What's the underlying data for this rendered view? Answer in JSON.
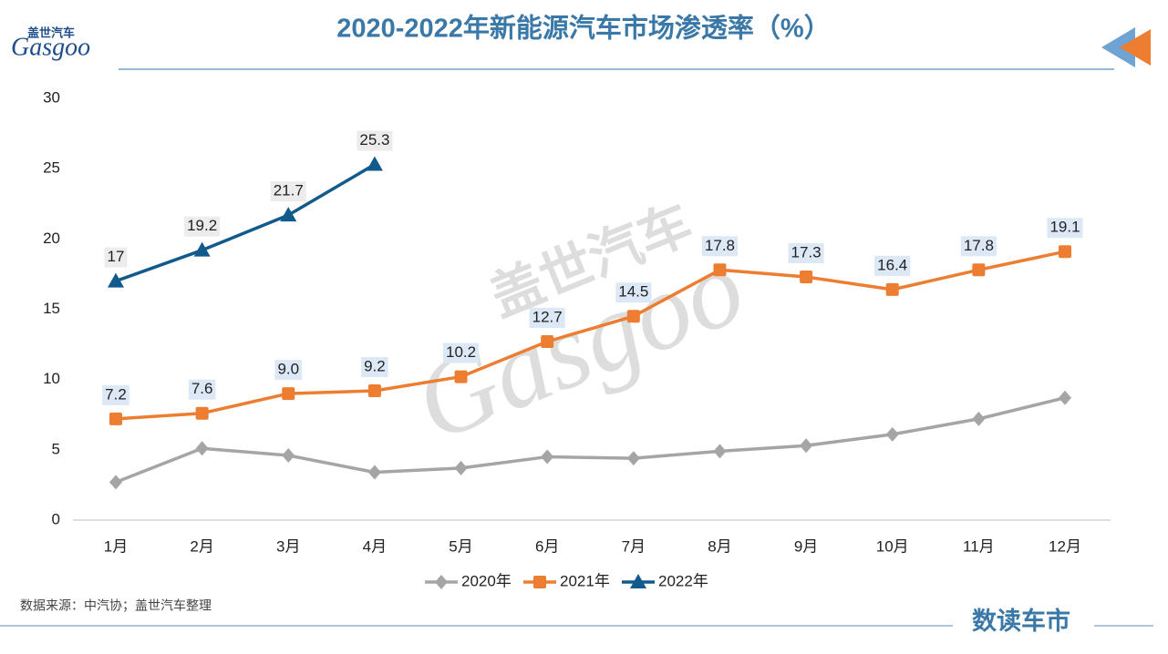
{
  "logo": {
    "cn": "盖世汽车",
    "en": "Gasgoo"
  },
  "source": "数据来源：中汽协；盖世汽车整理",
  "brand": "数读车市",
  "chart_data": {
    "type": "line",
    "title": "2020-2022年新能源汽车市场渗透率（%）",
    "categories": [
      "1月",
      "2月",
      "3月",
      "4月",
      "5月",
      "6月",
      "7月",
      "8月",
      "9月",
      "10月",
      "11月",
      "12月"
    ],
    "series": [
      {
        "name": "2020年",
        "color": "#a5a5a5",
        "marker": "diamond",
        "values": [
          2.7,
          5.1,
          4.6,
          3.4,
          3.7,
          4.5,
          4.4,
          4.9,
          5.3,
          6.1,
          7.2,
          8.7
        ]
      },
      {
        "name": "2021年",
        "color": "#ed7d31",
        "marker": "square",
        "values": [
          7.2,
          7.6,
          9.0,
          9.2,
          10.2,
          12.7,
          14.5,
          17.8,
          17.3,
          16.4,
          17.8,
          19.1
        ],
        "value_labels": [
          "7.2",
          "7.6",
          "9.0",
          "9.2",
          "10.2",
          "12.7",
          "14.5",
          "17.8",
          "17.3",
          "16.4",
          "17.8",
          "19.1"
        ]
      },
      {
        "name": "2022年",
        "color": "#125a8c",
        "marker": "triangle",
        "values": [
          17,
          19.2,
          21.7,
          25.3,
          null,
          null,
          null,
          null,
          null,
          null,
          null,
          null
        ]
      }
    ],
    "ylim": [
      0,
      30
    ],
    "yticks": [
      0,
      5,
      10,
      15,
      20,
      25,
      30
    ],
    "grid": false
  }
}
